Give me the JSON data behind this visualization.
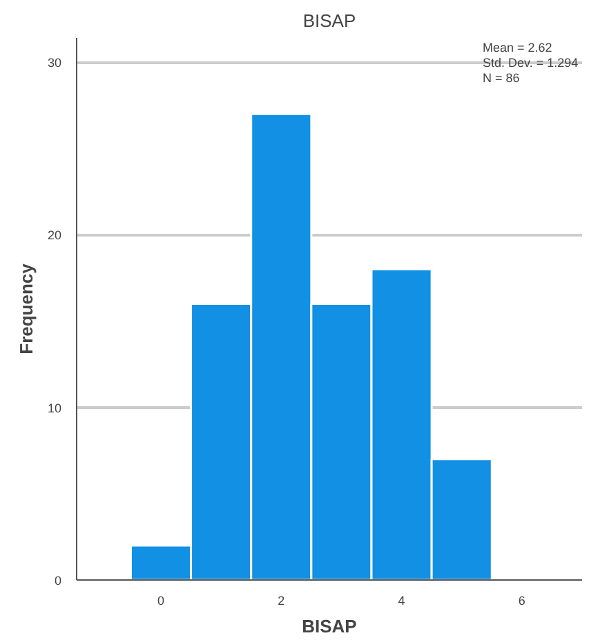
{
  "chart_data": {
    "type": "histogram",
    "title": "BISAP",
    "xlabel": "BISAP",
    "ylabel": "Frequency",
    "bins": [
      -0.5,
      0.5,
      1.5,
      2.5,
      3.5,
      4.5,
      5.5
    ],
    "values": [
      2,
      16,
      27,
      16,
      18,
      7
    ],
    "color": "#1290e4",
    "xlim": [
      -1.4,
      7
    ],
    "xticks": [
      0,
      2,
      4,
      6
    ],
    "ylim": [
      0,
      31.4
    ],
    "yticks": [
      0,
      10,
      20,
      30
    ],
    "grid": "y",
    "annotations": [
      "Mean = 2.62",
      "Std. Dev. = 1.294",
      "N = 86"
    ]
  }
}
